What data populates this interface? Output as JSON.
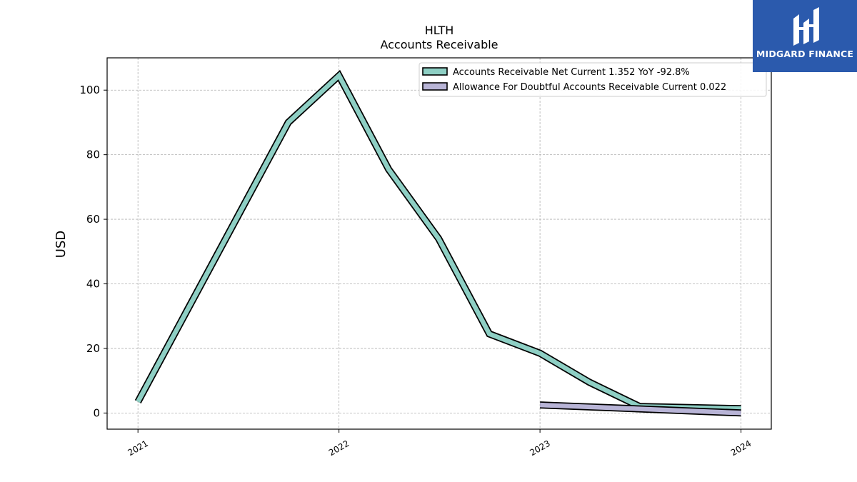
{
  "logo": {
    "text": "MIDGARD FINANCE",
    "background": "#2b5aad"
  },
  "chart_data": {
    "type": "line",
    "title": "HLTH",
    "subtitle": "Accounts Receivable",
    "xlabel": "",
    "ylabel": "USD",
    "xlim": [
      "2020-11-06",
      "2024-02-25"
    ],
    "ylim": [
      -5,
      110
    ],
    "x_ticks": [
      "2021-01-01",
      "2022-01-01",
      "2023-01-01",
      "2024-01-01"
    ],
    "x_tick_labels": [
      "2021",
      "2022",
      "2023",
      "2024"
    ],
    "y_ticks": [
      0,
      20,
      40,
      60,
      80,
      100
    ],
    "y_tick_labels": [
      "0",
      "20",
      "40",
      "60",
      "80",
      "100"
    ],
    "grid": true,
    "legend_position": "top-right",
    "series": [
      {
        "name": "Accounts Receivable Net Current  1.352 YoY -92.8%",
        "color": "#8ecfc4",
        "x": [
          "2021-01-01",
          "2021-10-01",
          "2022-01-01",
          "2022-04-01",
          "2022-07-01",
          "2022-10-01",
          "2023-01-01",
          "2023-04-01",
          "2023-07-01",
          "2024-01-01"
        ],
        "y": [
          3.5,
          90,
          104.5,
          75.5,
          54,
          24.5,
          18.5,
          9.5,
          2,
          1.35
        ]
      },
      {
        "name": "Allowance For Doubtful Accounts Receivable Current  0.022",
        "color": "#b8b4d6",
        "x": [
          "2023-01-01",
          "2024-01-01"
        ],
        "y": [
          2.5,
          0.022
        ]
      }
    ]
  }
}
